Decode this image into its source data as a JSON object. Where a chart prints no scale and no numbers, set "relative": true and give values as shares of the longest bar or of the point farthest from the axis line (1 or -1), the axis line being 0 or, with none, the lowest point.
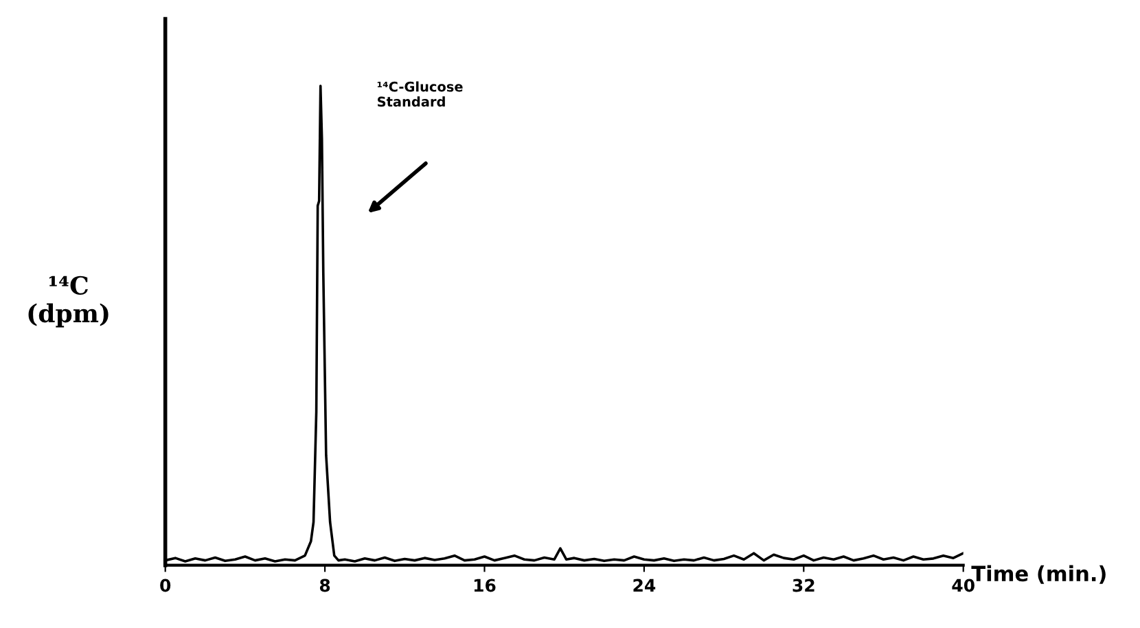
{
  "chart_data": {
    "type": "line",
    "relative": true,
    "xlabel": "Time (min.)",
    "ylabel": "¹⁴C\n(dpm)",
    "annotations": [
      "¹⁴C-Glucose\nStandard"
    ],
    "xlim": [
      0,
      40
    ],
    "xticks": [
      0,
      8,
      16,
      24,
      32,
      40
    ],
    "grid": false,
    "legend": false,
    "marker": "none",
    "line_style": "solid",
    "series": [
      {
        "color": "#000000",
        "x": [
          0,
          0.5,
          1,
          1.5,
          2,
          2.5,
          3,
          3.5,
          4,
          4.5,
          5,
          5.5,
          6,
          6.5,
          7,
          7.3,
          7.43,
          7.57,
          7.64,
          7.71,
          7.78,
          7.85,
          7.92,
          8.06,
          8.26,
          8.47,
          8.68,
          9,
          9.5,
          10,
          10.5,
          11,
          11.5,
          12,
          12.5,
          13,
          13.5,
          14,
          14.5,
          15,
          15.5,
          16,
          16.5,
          17,
          17.5,
          18,
          18.5,
          19,
          19.5,
          19.8,
          20.1,
          20.5,
          21,
          21.5,
          22,
          22.5,
          23,
          23.5,
          24,
          24.5,
          25,
          25.5,
          26,
          26.5,
          27,
          27.5,
          28,
          28.5,
          29,
          29.5,
          30,
          30.5,
          31,
          31.5,
          32,
          32.5,
          33,
          33.5,
          34,
          34.5,
          35,
          35.5,
          36,
          36.5,
          37,
          37.5,
          38,
          38.5,
          39,
          39.5,
          40
        ],
        "values": [
          0.01,
          0.015,
          0.008,
          0.014,
          0.01,
          0.016,
          0.009,
          0.012,
          0.018,
          0.01,
          0.014,
          0.008,
          0.012,
          0.01,
          0.02,
          0.05,
          0.09,
          0.32,
          0.75,
          0.76,
          1.0,
          0.89,
          0.61,
          0.23,
          0.09,
          0.02,
          0.01,
          0.012,
          0.008,
          0.014,
          0.01,
          0.016,
          0.009,
          0.013,
          0.01,
          0.015,
          0.011,
          0.014,
          0.02,
          0.01,
          0.012,
          0.018,
          0.01,
          0.015,
          0.02,
          0.012,
          0.01,
          0.016,
          0.012,
          0.035,
          0.012,
          0.015,
          0.01,
          0.013,
          0.009,
          0.012,
          0.01,
          0.018,
          0.012,
          0.01,
          0.014,
          0.009,
          0.012,
          0.01,
          0.016,
          0.01,
          0.013,
          0.02,
          0.012,
          0.025,
          0.01,
          0.022,
          0.015,
          0.012,
          0.02,
          0.01,
          0.016,
          0.012,
          0.018,
          0.01,
          0.014,
          0.02,
          0.012,
          0.016,
          0.01,
          0.018,
          0.012,
          0.014,
          0.02,
          0.015,
          0.025
        ]
      }
    ]
  }
}
